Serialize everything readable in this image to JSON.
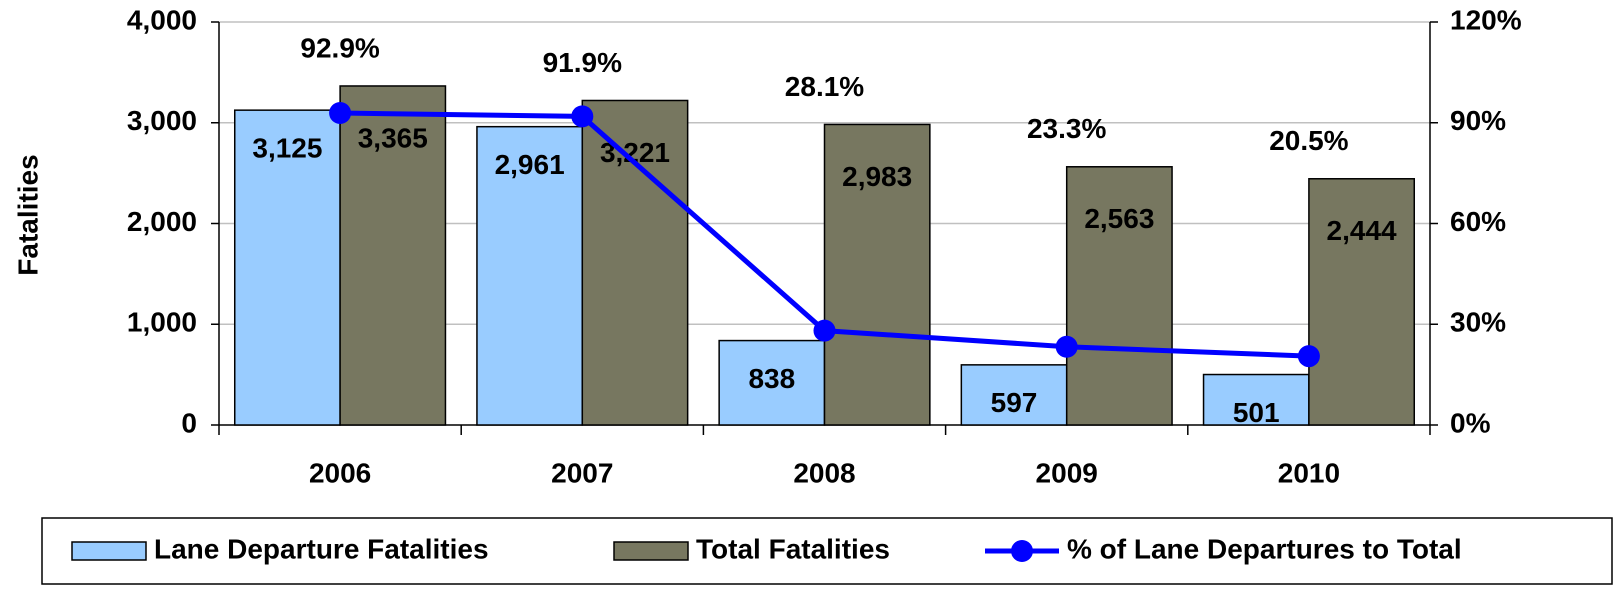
{
  "chart_data": {
    "type": "bar",
    "y_label": "Fatalities",
    "categories": [
      "2006",
      "2007",
      "2008",
      "2009",
      "2010"
    ],
    "series": [
      {
        "name": "Lane Departure Fatalities",
        "type": "bar",
        "color": "#99ccff",
        "values": [
          3125,
          2961,
          838,
          597,
          501
        ],
        "value_labels": [
          "3,125",
          "2,961",
          "838",
          "597",
          "501"
        ]
      },
      {
        "name": "Total Fatalities",
        "type": "bar",
        "color": "#777760",
        "values": [
          3365,
          3221,
          2983,
          2563,
          2444
        ],
        "value_labels": [
          "3,365",
          "3,221",
          "2,983",
          "2,563",
          "2,444"
        ]
      },
      {
        "name": "% of Lane Departures to Total",
        "type": "line",
        "axis": "y2",
        "color": "#0000ff",
        "values": [
          92.9,
          91.9,
          28.1,
          23.3,
          20.5
        ],
        "value_labels": [
          "92.9%",
          "91.9%",
          "28.1%",
          "23.3%",
          "20.5%"
        ]
      }
    ],
    "ylim": [
      0,
      4000
    ],
    "yticks": [
      0,
      {
        "value": 1000,
        "label": "1,000"
      },
      {
        "value": 2000,
        "label": "2,000"
      },
      {
        "value": 3000,
        "label": "3,000"
      },
      {
        "value": 4000,
        "label": "4,000"
      }
    ],
    "y2lim": [
      0,
      120
    ],
    "y2ticks": [
      {
        "value": 0,
        "label": "0%"
      },
      {
        "value": 30,
        "label": "30%"
      },
      {
        "value": 60,
        "label": "60%"
      },
      {
        "value": 90,
        "label": "90%"
      },
      {
        "value": 120,
        "label": "120%"
      }
    ],
    "grid": true,
    "legend": "bottom"
  }
}
